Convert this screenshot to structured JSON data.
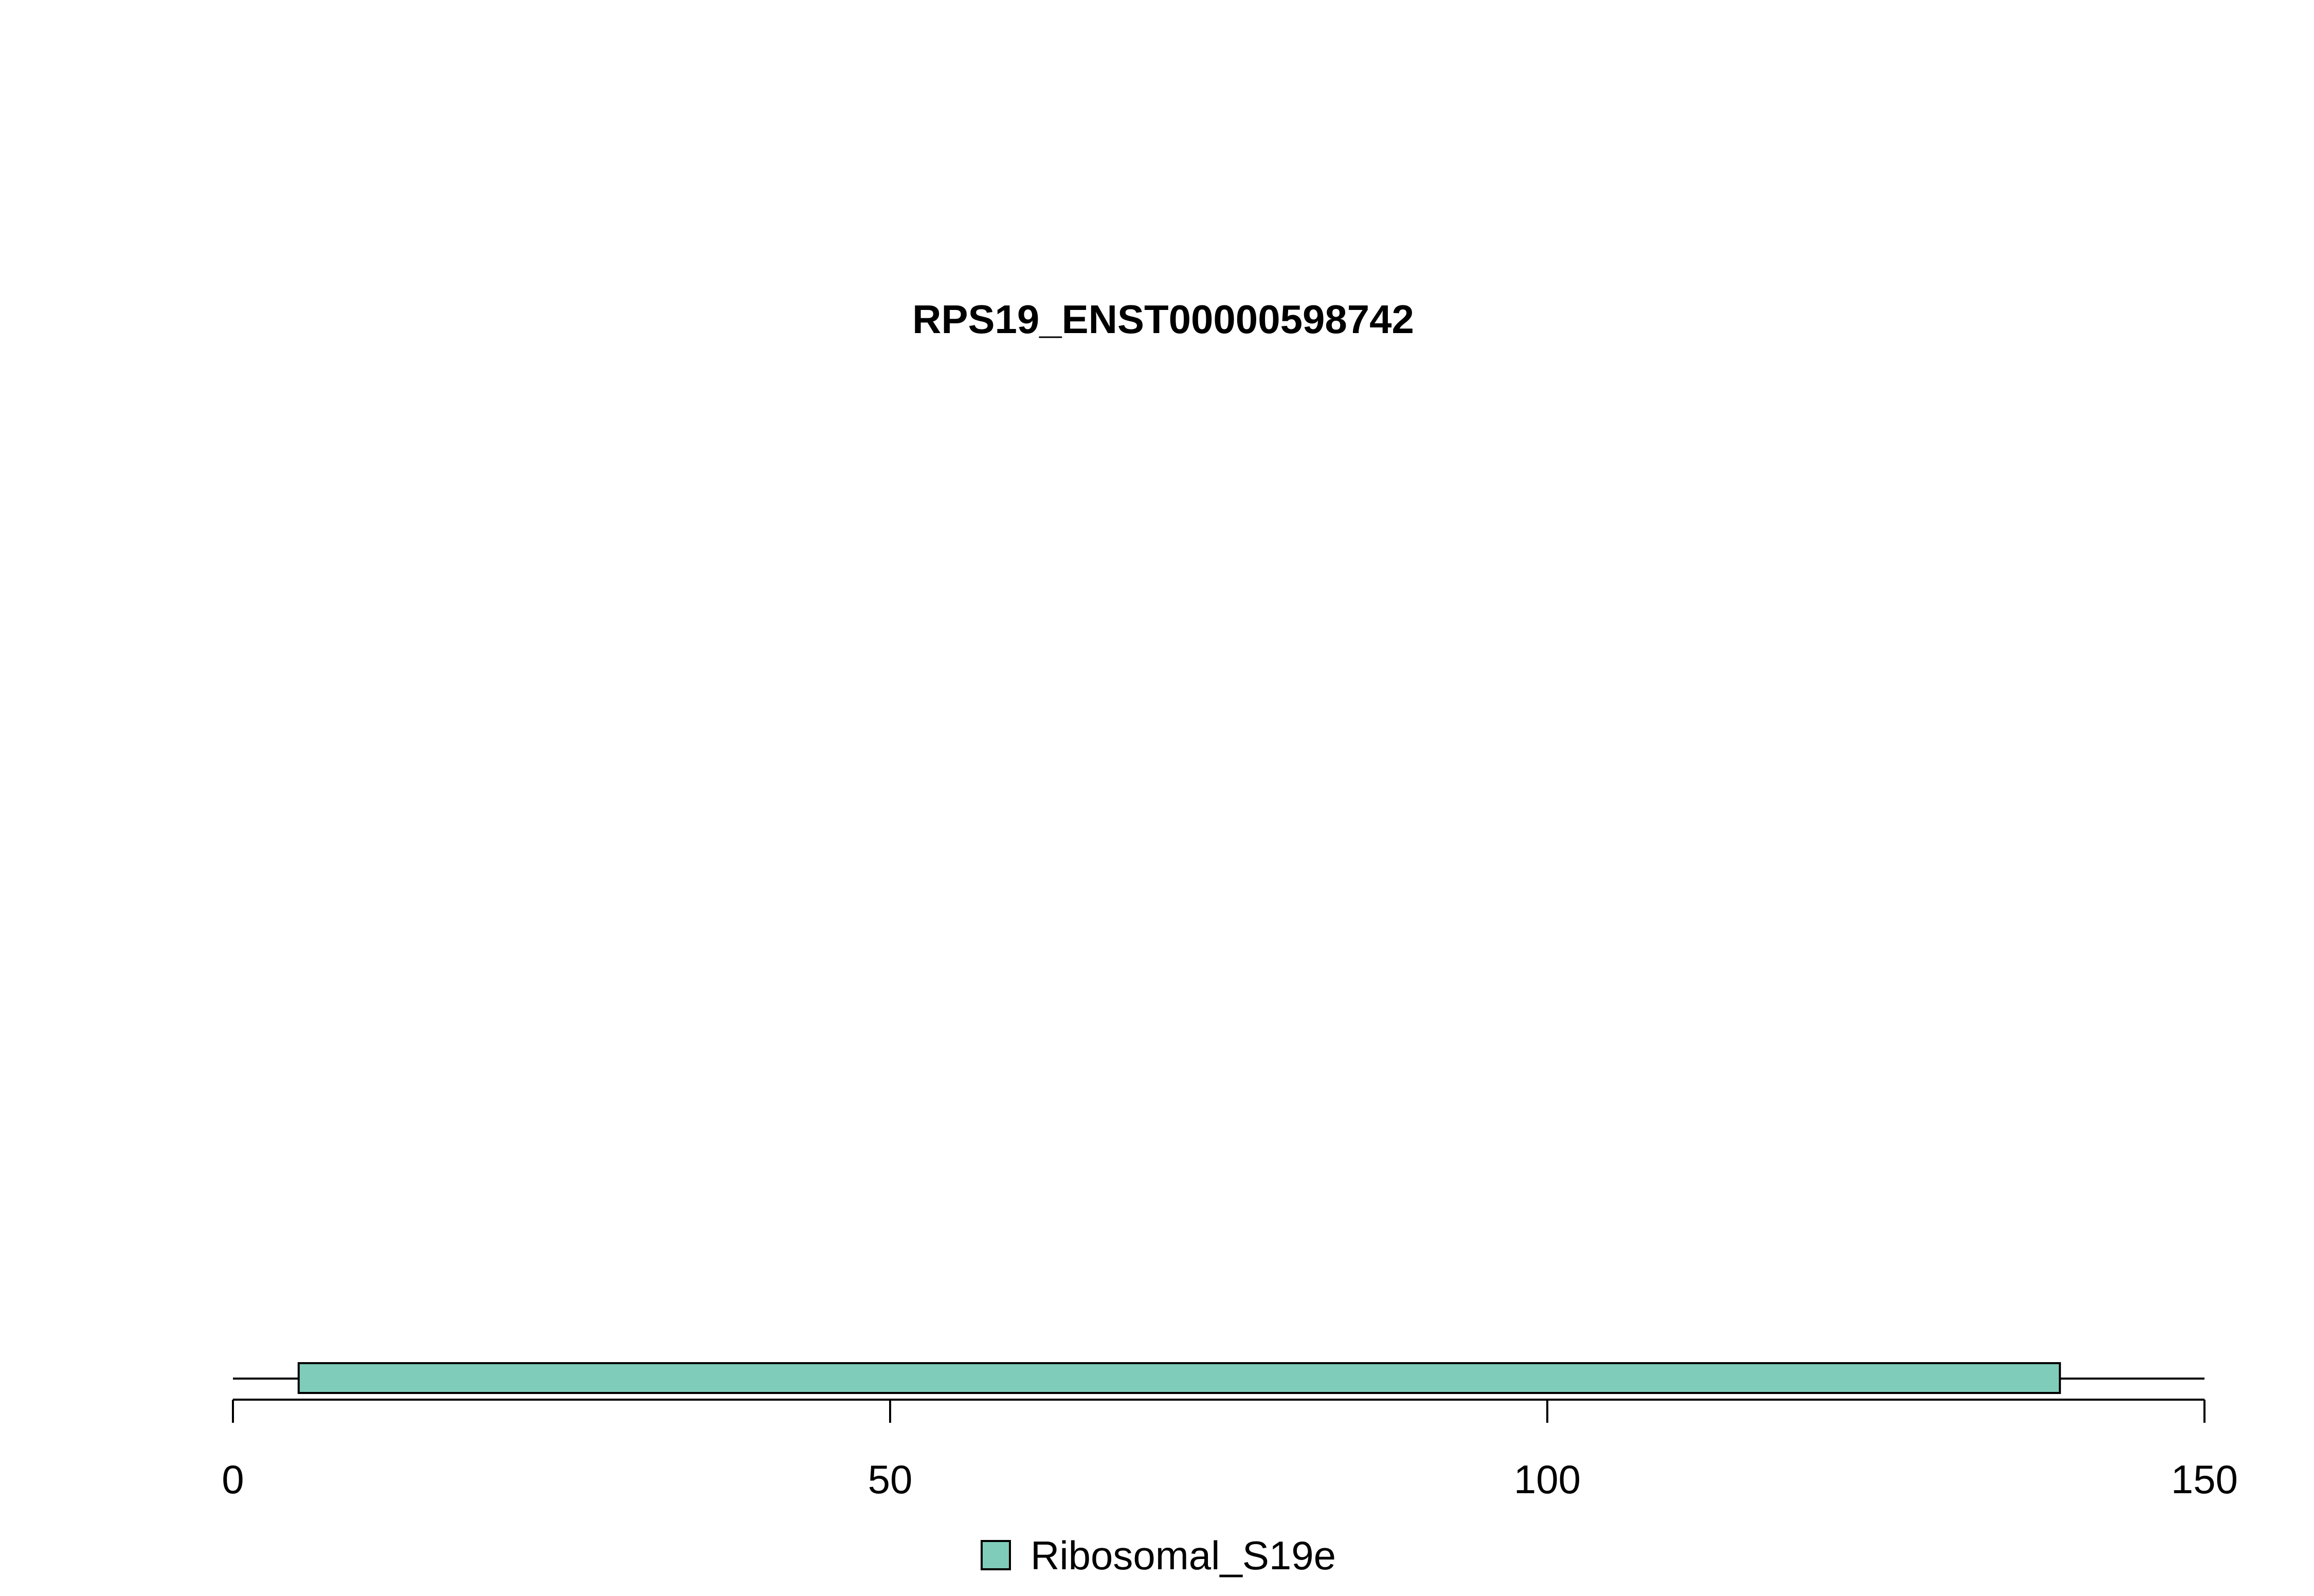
{
  "chart_data": {
    "type": "bar",
    "title": "RPS19_ENST00000598742",
    "xlabel": "",
    "ylabel": "",
    "xlim": [
      0,
      150
    ],
    "x_ticks": [
      0,
      50,
      100,
      150
    ],
    "x_tick_labels": [
      "0",
      "50",
      "100",
      "150"
    ],
    "protein_line": {
      "start": 0,
      "end": 150
    },
    "domains": [
      {
        "name": "Ribosomal_S19e",
        "start": 5,
        "end": 139,
        "color": "#7fccba"
      }
    ],
    "legend": [
      {
        "label": "Ribosomal_S19e",
        "color": "#7fccba"
      }
    ],
    "grid": false,
    "legend_position": "bottom-center"
  }
}
